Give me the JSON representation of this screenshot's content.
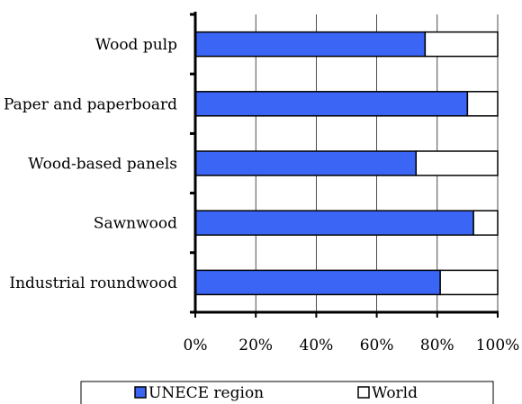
{
  "chart_data": {
    "type": "bar",
    "orientation": "horizontal",
    "stacked": true,
    "categories": [
      "Wood pulp",
      "Paper and paperboard",
      "Wood-based panels",
      "Sawnwood",
      "Industrial roundwood"
    ],
    "series": [
      {
        "name": "UNECE region",
        "color": "#3b66f5",
        "values": [
          76,
          90,
          73,
          92,
          81
        ]
      },
      {
        "name": "World",
        "color": "#ffffff",
        "values": [
          24,
          10,
          27,
          8,
          19
        ]
      }
    ],
    "x_ticks": [
      "0%",
      "20%",
      "40%",
      "60%",
      "80%",
      "100%"
    ],
    "xlim": [
      0,
      100
    ],
    "grid": true,
    "legend_position": "bottom"
  }
}
